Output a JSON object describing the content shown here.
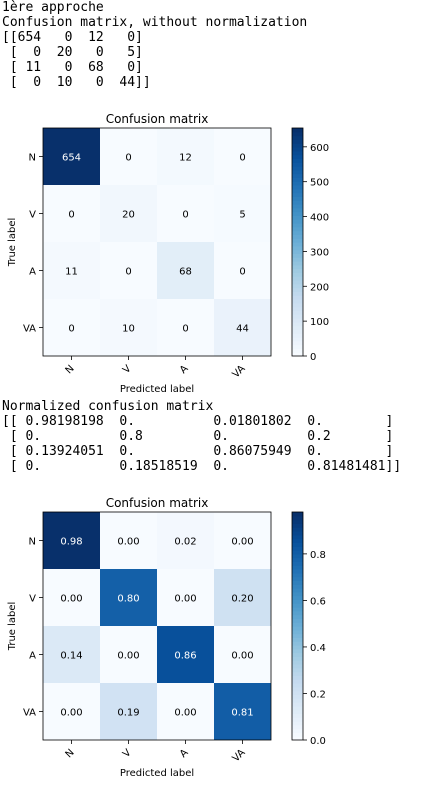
{
  "output1": {
    "lines": [
      "1ère approche",
      "Confusion matrix, without normalization",
      "[[654   0  12   0]",
      " [  0  20   0   5]",
      " [ 11   0  68   0]",
      " [  0  10   0  44]]"
    ]
  },
  "output2": {
    "lines": [
      "Normalized confusion matrix",
      "[[ 0.98198198  0.          0.01801802  0.        ]",
      " [ 0.          0.8         0.          0.2       ]",
      " [ 0.13924051  0.          0.86075949  0.        ]",
      " [ 0.          0.18518519  0.          0.81481481]]"
    ]
  },
  "chart_data": [
    {
      "type": "heatmap",
      "title": "Confusion matrix",
      "xlabel": "Predicted label",
      "ylabel": "True label",
      "x_categories": [
        "N",
        "V",
        "A",
        "VA"
      ],
      "y_categories": [
        "N",
        "V",
        "A",
        "VA"
      ],
      "values": [
        [
          654,
          0,
          12,
          0
        ],
        [
          0,
          20,
          0,
          5
        ],
        [
          11,
          0,
          68,
          0
        ],
        [
          0,
          10,
          0,
          44
        ]
      ],
      "cell_labels": [
        [
          "654",
          "0",
          "12",
          "0"
        ],
        [
          "0",
          "20",
          "0",
          "5"
        ],
        [
          "11",
          "0",
          "68",
          "0"
        ],
        [
          "0",
          "10",
          "0",
          "44"
        ]
      ],
      "color_range": [
        0,
        654
      ],
      "colorbar_ticks": [
        0,
        100,
        200,
        300,
        400,
        500,
        600
      ],
      "colorbar_tick_labels": [
        "0",
        "100",
        "200",
        "300",
        "400",
        "500",
        "600"
      ],
      "colormap": "Blues"
    },
    {
      "type": "heatmap",
      "title": "Confusion matrix",
      "xlabel": "Predicted label",
      "ylabel": "True label",
      "x_categories": [
        "N",
        "V",
        "A",
        "VA"
      ],
      "y_categories": [
        "N",
        "V",
        "A",
        "VA"
      ],
      "values": [
        [
          0.98,
          0.0,
          0.02,
          0.0
        ],
        [
          0.0,
          0.8,
          0.0,
          0.2
        ],
        [
          0.14,
          0.0,
          0.86,
          0.0
        ],
        [
          0.0,
          0.19,
          0.0,
          0.81
        ]
      ],
      "cell_labels": [
        [
          "0.98",
          "0.00",
          "0.02",
          "0.00"
        ],
        [
          "0.00",
          "0.80",
          "0.00",
          "0.20"
        ],
        [
          "0.14",
          "0.00",
          "0.86",
          "0.00"
        ],
        [
          "0.00",
          "0.19",
          "0.00",
          "0.81"
        ]
      ],
      "color_range": [
        0,
        0.98
      ],
      "colorbar_ticks": [
        0,
        0.2,
        0.4,
        0.6,
        0.8
      ],
      "colorbar_tick_labels": [
        "0.0",
        "0.2",
        "0.4",
        "0.6",
        "0.8"
      ],
      "colormap": "Blues"
    }
  ]
}
